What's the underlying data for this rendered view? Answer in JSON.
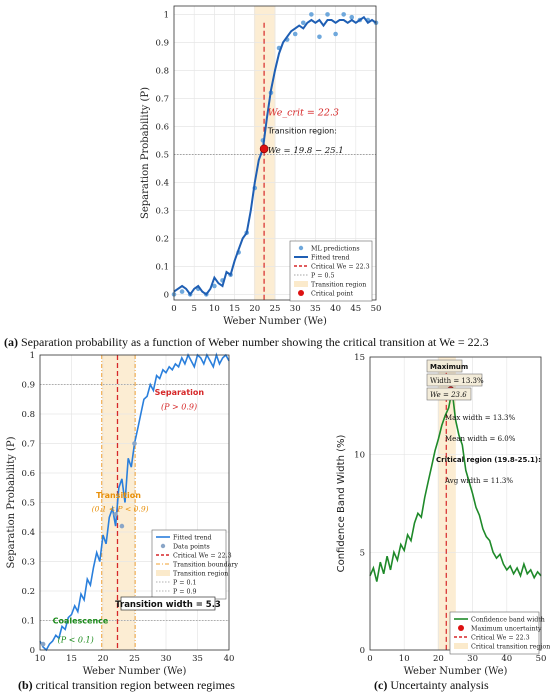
{
  "captions": {
    "a_label": "(a)",
    "a_text": "Separation probability as a function of Weber number showing the critical transition at We = 22.3",
    "b_label": "(b)",
    "b_text": "critical transition region between regimes",
    "c_label": "(c)",
    "c_text": "Uncertainty analysis"
  },
  "chart_data": [
    {
      "id": "a",
      "type": "line",
      "xlabel": "Weber Number (We)",
      "ylabel": "Separation Probability (P)",
      "xlim": [
        0,
        50
      ],
      "ylim": [
        -0.02,
        1.03
      ],
      "xticks": [
        "0",
        "5",
        "10",
        "15",
        "20",
        "25",
        "30",
        "35",
        "40",
        "45",
        "50"
      ],
      "yticks": [
        "0",
        "0.1",
        "0.2",
        "0.3",
        "0.4",
        "0.5",
        "0.6",
        "0.7",
        "0.8",
        "0.9",
        "1"
      ],
      "grid": true,
      "legend_position": "bottom-right",
      "annotations": {
        "critical": "We_crit = 22.3",
        "transition_title": "Transition region:",
        "transition_range": "We = 19.8 − 25.1"
      },
      "legend": [
        "ML predictions",
        "Fitted trend",
        "Critical We = 22.3",
        "P = 0.5",
        "Transition region",
        "Critical point"
      ],
      "critical_we": 22.3,
      "transition_region": [
        19.8,
        25.1
      ],
      "critical_point": [
        22.3,
        0.52
      ],
      "ml_points": {
        "x": [
          0,
          2,
          4,
          6,
          8,
          10,
          12,
          14,
          16,
          18,
          20,
          22,
          24,
          26,
          28,
          30,
          32,
          34,
          36,
          38,
          40,
          42,
          44,
          46,
          48,
          50
        ],
        "y": [
          0.0,
          0.01,
          0.0,
          0.02,
          0.0,
          0.03,
          0.05,
          0.07,
          0.15,
          0.22,
          0.38,
          0.55,
          0.72,
          0.88,
          0.91,
          0.93,
          0.97,
          1.0,
          0.92,
          1.0,
          0.93,
          1.0,
          0.99,
          0.98,
          0.98,
          0.97
        ]
      },
      "fitted_trend": {
        "x": [
          0,
          1,
          2,
          3,
          4,
          5,
          6,
          7,
          8,
          9,
          10,
          11,
          12,
          13,
          14,
          15,
          16,
          17,
          18,
          19,
          20,
          21,
          22,
          23,
          24,
          25,
          26,
          27,
          28,
          29,
          30,
          31,
          32,
          33,
          34,
          35,
          36,
          37,
          38,
          39,
          40,
          41,
          42,
          43,
          44,
          45,
          46,
          47,
          48,
          49,
          50
        ],
        "y": [
          0.01,
          0.02,
          0.03,
          0.02,
          0.0,
          0.02,
          0.03,
          0.01,
          0.0,
          0.02,
          0.06,
          0.04,
          0.03,
          0.08,
          0.07,
          0.12,
          0.16,
          0.2,
          0.22,
          0.3,
          0.4,
          0.48,
          0.52,
          0.63,
          0.73,
          0.8,
          0.86,
          0.9,
          0.92,
          0.94,
          0.95,
          0.96,
          0.95,
          0.97,
          0.98,
          0.97,
          0.98,
          0.96,
          0.98,
          0.98,
          0.97,
          0.98,
          0.98,
          0.97,
          0.98,
          0.97,
          0.98,
          0.99,
          0.97,
          0.98,
          0.97
        ]
      }
    },
    {
      "id": "b",
      "type": "line",
      "xlabel": "Weber Number (We)",
      "ylabel": "Separation Probability (P)",
      "xlim": [
        10,
        40
      ],
      "ylim": [
        0,
        1.0
      ],
      "xticks": [
        "10",
        "15",
        "20",
        "25",
        "30",
        "35",
        "40"
      ],
      "yticks": [
        "0",
        "0.1",
        "0.2",
        "0.3",
        "0.4",
        "0.5",
        "0.6",
        "0.7",
        "0.8",
        "0.9",
        "1"
      ],
      "grid": true,
      "legend_position": "bottom-right",
      "annotations": {
        "coalescence": "Coalescence",
        "coalescence_cond": "(P < 0.1)",
        "transition": "Transition",
        "transition_cond": "(0.1 < P < 0.9)",
        "separation": "Separation",
        "separation_cond": "(P > 0.9)",
        "width": "Transition width = 5.3"
      },
      "legend": [
        "Fitted trend",
        "Data points",
        "Critical We = 22.3",
        "Transition boundary",
        "Transition region",
        "P = 0.1",
        "P = 0.9"
      ],
      "critical_we": 22.3,
      "transition_bounds": [
        19.8,
        25.1
      ],
      "data_points": {
        "x": [
          10.5,
          22,
          23,
          25
        ],
        "y": [
          0.02,
          0.46,
          0.42,
          0.7
        ]
      },
      "fitted_trend": {
        "x": [
          10,
          10.5,
          11,
          11.5,
          12,
          12.5,
          13,
          13.5,
          14,
          14.5,
          15,
          15.5,
          16,
          16.5,
          17,
          17.5,
          18,
          18.5,
          19,
          19.5,
          20,
          20.5,
          21,
          21.5,
          22,
          22.5,
          23,
          23.5,
          24,
          24.5,
          25,
          25.5,
          26,
          26.5,
          27,
          27.5,
          28,
          28.5,
          29,
          29.5,
          30,
          30.5,
          31,
          31.5,
          32,
          32.5,
          33,
          33.5,
          34,
          34.5,
          35,
          35.5,
          36,
          36.5,
          37,
          37.5,
          38,
          38.5,
          39,
          39.5,
          40
        ],
        "y": [
          0.03,
          0.01,
          0.0,
          0.02,
          0.03,
          0.05,
          0.04,
          0.08,
          0.07,
          0.11,
          0.12,
          0.15,
          0.13,
          0.19,
          0.17,
          0.24,
          0.22,
          0.28,
          0.33,
          0.3,
          0.39,
          0.36,
          0.45,
          0.48,
          0.42,
          0.55,
          0.58,
          0.5,
          0.65,
          0.62,
          0.7,
          0.75,
          0.8,
          0.85,
          0.86,
          0.9,
          0.88,
          0.93,
          0.92,
          0.95,
          0.94,
          0.96,
          0.95,
          0.97,
          0.96,
          0.99,
          0.97,
          1.0,
          0.98,
          0.96,
          1.0,
          0.99,
          0.97,
          1.0,
          0.98,
          0.96,
          1.0,
          0.97,
          0.99,
          1.0,
          0.98
        ]
      }
    },
    {
      "id": "c",
      "type": "line",
      "xlabel": "Weber Number (We)",
      "ylabel": "Confidence Band Width (%)",
      "xlim": [
        0,
        50
      ],
      "ylim": [
        0,
        15
      ],
      "xticks": [
        "0",
        "10",
        "20",
        "30",
        "40",
        "50"
      ],
      "yticks": [
        "0",
        "5",
        "10",
        "15"
      ],
      "grid": true,
      "legend_position": "bottom-right",
      "annotations": {
        "max_title": "Maximum",
        "max_width": "Width = 13.3%",
        "max_we": "We = 23.6",
        "max_width_text": "Max width = 13.3%",
        "mean_width_text": "Mean width = 6.0%",
        "critical_region": "Critical region (19.8-25.1):",
        "avg_width": "Avg width = 11.3%"
      },
      "legend": [
        "Confidence band width",
        "Maximum uncertainty",
        "Critical We = 22.3",
        "Critical transition region"
      ],
      "critical_we": 22.3,
      "transition_region": [
        19.8,
        25.1
      ],
      "max_point": [
        23.6,
        13.3
      ],
      "band_width": {
        "x": [
          0,
          1,
          2,
          3,
          4,
          5,
          6,
          7,
          8,
          9,
          10,
          11,
          12,
          13,
          14,
          15,
          16,
          17,
          18,
          19,
          20,
          21,
          22,
          23,
          24,
          25,
          26,
          27,
          28,
          29,
          30,
          31,
          32,
          33,
          34,
          35,
          36,
          37,
          38,
          39,
          40,
          41,
          42,
          43,
          44,
          45,
          46,
          47,
          48,
          49,
          50
        ],
        "y": [
          3.8,
          4.2,
          3.5,
          4.5,
          3.9,
          4.8,
          4.1,
          5.0,
          4.6,
          5.4,
          5.1,
          5.9,
          5.6,
          6.5,
          7.0,
          6.8,
          7.8,
          8.6,
          9.4,
          10.2,
          10.8,
          11.5,
          12.0,
          12.4,
          13.3,
          11.8,
          11.0,
          10.5,
          9.2,
          8.6,
          8.0,
          7.3,
          6.9,
          6.2,
          5.8,
          5.6,
          5.0,
          4.7,
          4.9,
          4.4,
          4.1,
          4.3,
          3.9,
          4.2,
          3.8,
          4.4,
          3.9,
          4.1,
          3.7,
          4.0,
          3.8
        ]
      }
    }
  ]
}
